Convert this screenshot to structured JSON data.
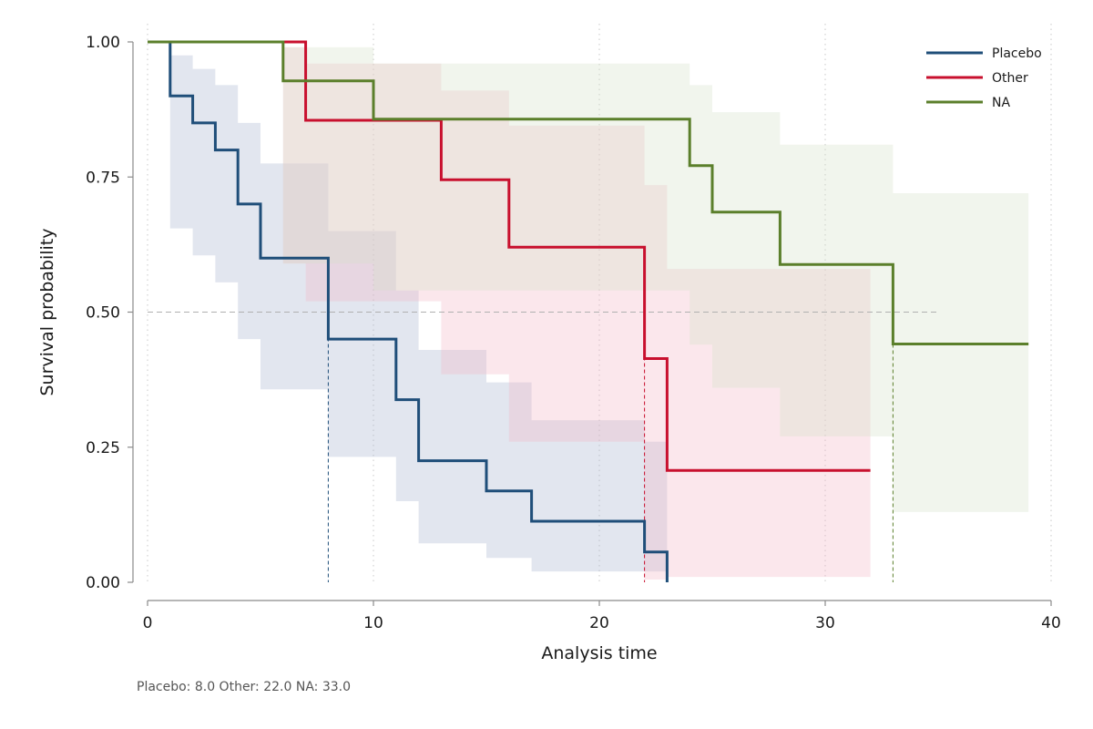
{
  "chart_data": {
    "type": "line",
    "subtype": "kaplan-meier step survival curves with confidence bands",
    "xlabel": "Analysis time",
    "ylabel": "Survival probability",
    "xlim": [
      0,
      40
    ],
    "ylim": [
      0,
      1
    ],
    "xticks": [
      0,
      10,
      20,
      30,
      40
    ],
    "yticks": [
      0,
      0.25,
      0.5,
      0.75,
      1.0
    ],
    "xtick_labels": [
      "0",
      "10",
      "20",
      "30",
      "40"
    ],
    "ytick_labels": [
      "0.00",
      "0.25",
      "0.50",
      "0.75",
      "1.00"
    ],
    "grid": "vertical dotted lines at x ticks",
    "reference_line": {
      "y": 0.5,
      "x_end": 35,
      "style": "dashed"
    },
    "legend_position": "top-right",
    "series": [
      {
        "name": "Placebo",
        "color": "#1f4e79",
        "band_color": "#a6b3cf",
        "median": 8,
        "steps": [
          [
            0,
            1.0
          ],
          [
            1,
            0.9
          ],
          [
            2,
            0.85
          ],
          [
            3,
            0.8
          ],
          [
            4,
            0.7
          ],
          [
            5,
            0.6
          ],
          [
            8,
            0.45
          ],
          [
            11,
            0.338
          ],
          [
            12,
            0.225
          ],
          [
            15,
            0.169
          ],
          [
            17,
            0.113
          ],
          [
            22,
            0.056
          ],
          [
            23,
            0.0
          ]
        ],
        "band": [
          [
            1,
            0.975,
            0.655
          ],
          [
            2,
            0.95,
            0.605
          ],
          [
            3,
            0.92,
            0.555
          ],
          [
            4,
            0.85,
            0.45
          ],
          [
            5,
            0.775,
            0.357
          ],
          [
            8,
            0.65,
            0.232
          ],
          [
            11,
            0.54,
            0.15
          ],
          [
            12,
            0.43,
            0.072
          ],
          [
            15,
            0.37,
            0.045
          ],
          [
            17,
            0.3,
            0.02
          ],
          [
            22,
            0.26,
            0.02
          ],
          [
            23,
            0.26,
            0.02
          ]
        ]
      },
      {
        "name": "Other",
        "color": "#c8102e",
        "band_color": "#f2b6c6",
        "median": 22,
        "steps": [
          [
            0,
            1.0
          ],
          [
            7,
            0.928
          ],
          [
            7,
            0.855
          ],
          [
            13,
            0.745
          ],
          [
            16,
            0.62
          ],
          [
            22,
            0.414
          ],
          [
            23,
            0.207
          ],
          [
            32,
            0.207
          ]
        ],
        "band": [
          [
            6,
            0.99,
            0.59
          ],
          [
            7,
            0.96,
            0.52
          ],
          [
            13,
            0.91,
            0.385
          ],
          [
            16,
            0.845,
            0.26
          ],
          [
            22,
            0.735,
            0.005
          ],
          [
            23,
            0.58,
            0.01
          ],
          [
            32,
            0.58,
            0.01
          ]
        ]
      },
      {
        "name": "NA",
        "color": "#5b7f2b",
        "band_color": "#d6e0c9",
        "median": 33,
        "steps": [
          [
            0,
            1.0
          ],
          [
            6,
            0.928
          ],
          [
            10,
            0.857
          ],
          [
            24,
            0.771
          ],
          [
            25,
            0.685
          ],
          [
            28,
            0.588
          ],
          [
            33,
            0.441
          ],
          [
            39,
            0.441
          ]
        ],
        "band": [
          [
            6,
            0.99,
            0.59
          ],
          [
            10,
            0.96,
            0.54
          ],
          [
            13,
            0.96,
            0.54
          ],
          [
            24,
            0.92,
            0.44
          ],
          [
            25,
            0.87,
            0.36
          ],
          [
            28,
            0.81,
            0.27
          ],
          [
            33,
            0.72,
            0.13
          ],
          [
            39,
            0.72,
            0.13
          ]
        ]
      }
    ]
  },
  "footnote": "Placebo: 8.0  Other: 22.0  NA: 33.0"
}
